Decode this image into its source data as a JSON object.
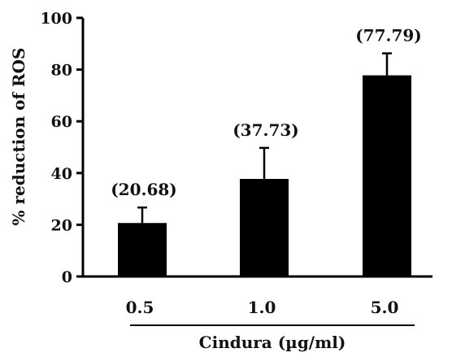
{
  "chart_data": {
    "type": "bar",
    "categories": [
      "0.5",
      "1.0",
      "5.0"
    ],
    "values": [
      20.68,
      37.73,
      77.79
    ],
    "errors": [
      6.0,
      12.0,
      8.5
    ],
    "data_labels": [
      "(20.68)",
      "(37.73)",
      "(77.79)"
    ],
    "title": "",
    "xlabel": "Cindura (µg/ml)",
    "ylabel": "% reduction of ROS",
    "ylim": [
      0,
      100
    ],
    "yticks": [
      0,
      20,
      40,
      60,
      80,
      100
    ],
    "grid": false,
    "bar_color": "#000000"
  }
}
